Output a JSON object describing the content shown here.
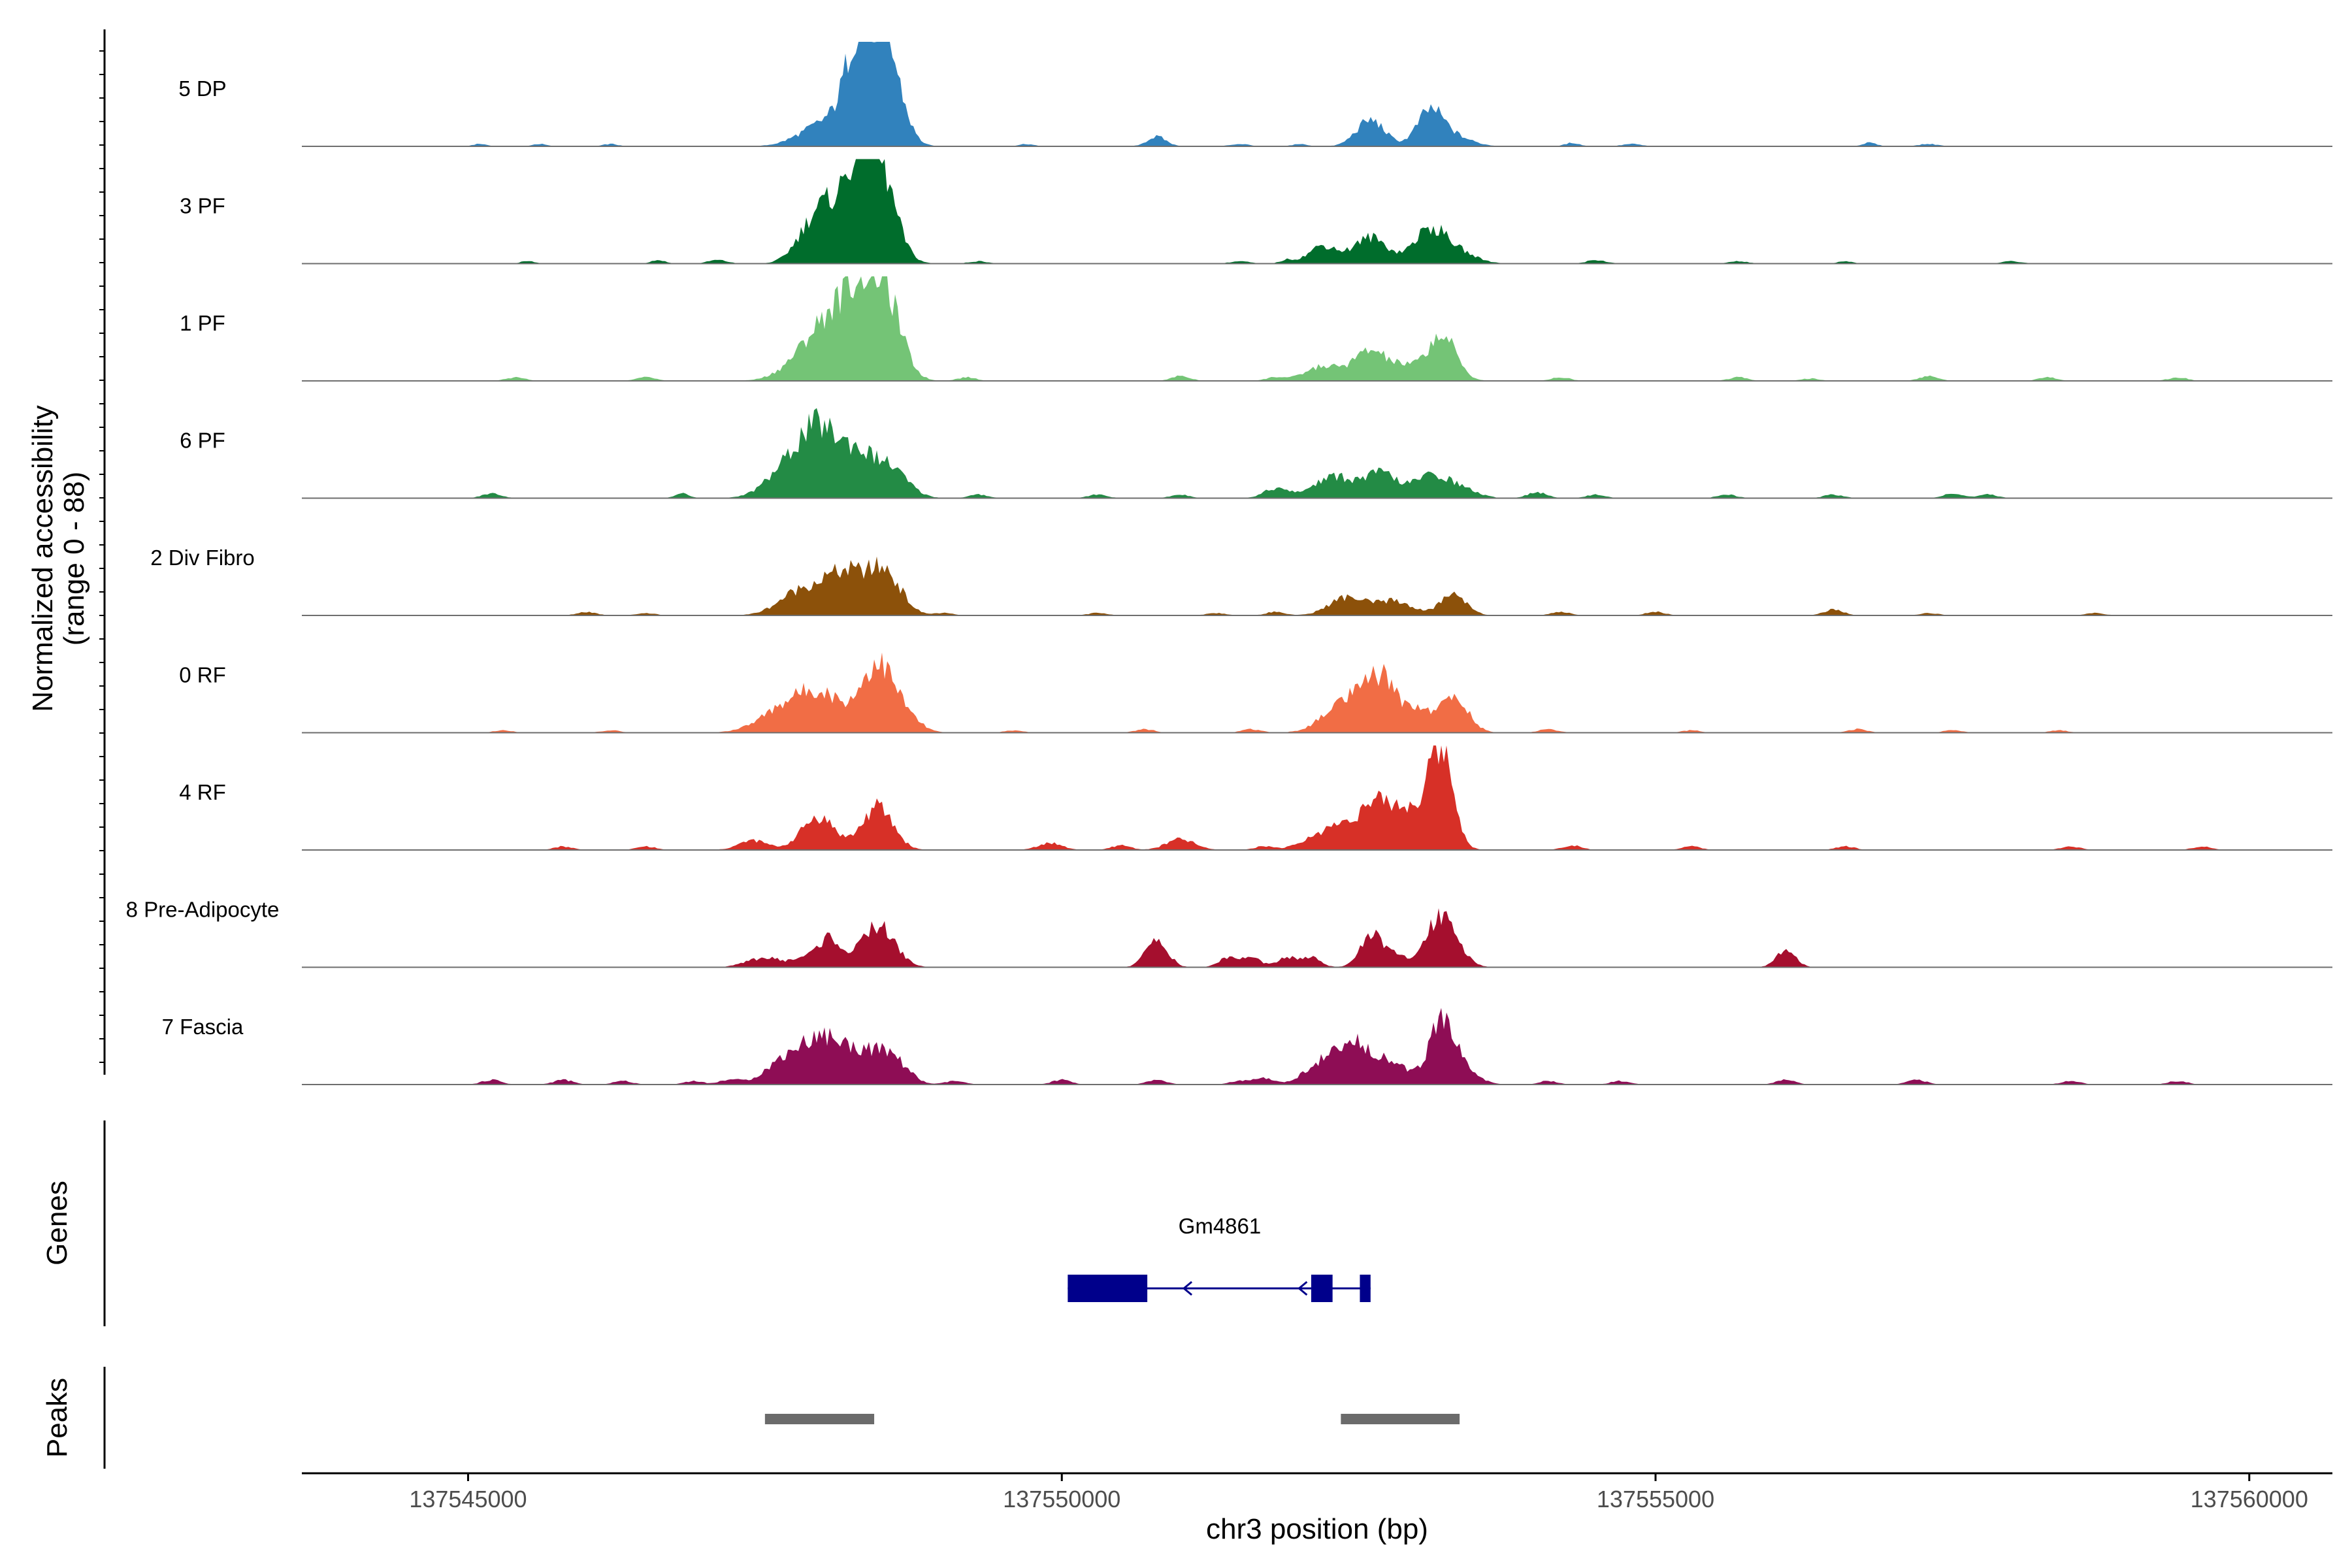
{
  "chart_data": {
    "type": "area",
    "title": "",
    "ylabel_line1": "Normalized accessibility",
    "ylabel_line2": "(range 0 - 88)",
    "xlabel": "chr3 position (bp)",
    "x_range": [
      137543600,
      137560700
    ],
    "y_range": [
      0,
      88
    ],
    "xticks": [
      {
        "value": 137545000,
        "label": "137545000"
      },
      {
        "value": 137550000,
        "label": "137550000"
      },
      {
        "value": 137555000,
        "label": "137555000"
      },
      {
        "value": 137560000,
        "label": "137560000"
      }
    ],
    "tracks": [
      {
        "name": "5 DP",
        "color": "#3182BD",
        "peaks": [
          [
            137547900,
            10,
            180
          ],
          [
            137548150,
            18,
            180
          ],
          [
            137548400,
            75,
            150
          ],
          [
            137548550,
            40,
            120
          ],
          [
            137548250,
            30,
            80
          ],
          [
            137550800,
            8,
            80
          ],
          [
            137552600,
            22,
            120
          ],
          [
            137553100,
            28,
            110
          ],
          [
            137553300,
            8,
            150
          ]
        ],
        "noise": [
          [
            137545100,
            2,
            60
          ],
          [
            137545600,
            2,
            60
          ],
          [
            137546200,
            2,
            60
          ],
          [
            137549700,
            2,
            60
          ],
          [
            137551500,
            2,
            80
          ],
          [
            137552000,
            2,
            60
          ],
          [
            137554300,
            3,
            60
          ],
          [
            137554800,
            2,
            80
          ],
          [
            137556800,
            3,
            60
          ],
          [
            137557300,
            2,
            80
          ]
        ]
      },
      {
        "name": "3 PF",
        "color": "#006D2C",
        "peaks": [
          [
            137547900,
            25,
            140
          ],
          [
            137548150,
            45,
            180
          ],
          [
            137548450,
            78,
            140
          ],
          [
            137548300,
            30,
            100
          ],
          [
            137552200,
            15,
            120
          ],
          [
            137552600,
            22,
            140
          ],
          [
            137553100,
            28,
            140
          ],
          [
            137553350,
            8,
            150
          ]
        ],
        "noise": [
          [
            137545500,
            2,
            60
          ],
          [
            137546600,
            3,
            60
          ],
          [
            137547100,
            3,
            80
          ],
          [
            137549300,
            2,
            80
          ],
          [
            137551500,
            2,
            80
          ],
          [
            137551900,
            3,
            60
          ],
          [
            137554500,
            3,
            80
          ],
          [
            137555700,
            2,
            80
          ],
          [
            137556600,
            2,
            60
          ],
          [
            137558000,
            2,
            80
          ]
        ]
      },
      {
        "name": "1 PF",
        "color": "#74C476",
        "peaks": [
          [
            137547900,
            25,
            200
          ],
          [
            137548150,
            45,
            180
          ],
          [
            137548500,
            72,
            140
          ],
          [
            137548300,
            30,
            120
          ],
          [
            137552200,
            12,
            150
          ],
          [
            137552600,
            25,
            140
          ],
          [
            137552900,
            10,
            120
          ],
          [
            137553200,
            38,
            120
          ]
        ],
        "noise": [
          [
            137545400,
            3,
            80
          ],
          [
            137546500,
            3,
            80
          ],
          [
            137549200,
            3,
            80
          ],
          [
            137551000,
            4,
            80
          ],
          [
            137551800,
            3,
            80
          ],
          [
            137554200,
            3,
            80
          ],
          [
            137555700,
            3,
            80
          ],
          [
            137556300,
            2,
            80
          ],
          [
            137557300,
            4,
            80
          ],
          [
            137558300,
            3,
            80
          ],
          [
            137559400,
            3,
            80
          ]
        ]
      },
      {
        "name": "6 PF",
        "color": "#238B45",
        "peaks": [
          [
            137547700,
            25,
            180
          ],
          [
            137547950,
            48,
            150
          ],
          [
            137548250,
            35,
            150
          ],
          [
            137548550,
            24,
            150
          ],
          [
            137552300,
            18,
            180
          ],
          [
            137552700,
            20,
            130
          ],
          [
            137553100,
            18,
            140
          ],
          [
            137553350,
            8,
            140
          ]
        ],
        "noise": [
          [
            137545200,
            4,
            80
          ],
          [
            137546800,
            4,
            60
          ],
          [
            137549300,
            3,
            80
          ],
          [
            137550300,
            3,
            80
          ],
          [
            137551000,
            3,
            80
          ],
          [
            137551800,
            8,
            100
          ],
          [
            137554000,
            5,
            80
          ],
          [
            137554500,
            3,
            80
          ],
          [
            137555600,
            3,
            80
          ],
          [
            137556500,
            3,
            80
          ],
          [
            137557500,
            4,
            80
          ],
          [
            137557800,
            3,
            80
          ]
        ]
      },
      {
        "name": "2 Div Fibro",
        "color": "#8C510A",
        "peaks": [
          [
            137547800,
            20,
            180
          ],
          [
            137548100,
            24,
            150
          ],
          [
            137548500,
            38,
            140
          ],
          [
            137548250,
            15,
            120
          ],
          [
            137552400,
            15,
            150
          ],
          [
            137552800,
            12,
            150
          ],
          [
            137553300,
            18,
            110
          ]
        ],
        "noise": [
          [
            137546000,
            3,
            80
          ],
          [
            137546500,
            2,
            80
          ],
          [
            137549000,
            2,
            80
          ],
          [
            137550300,
            2,
            80
          ],
          [
            137551300,
            2,
            80
          ],
          [
            137551800,
            3,
            80
          ],
          [
            137554200,
            3,
            80
          ],
          [
            137555000,
            3,
            80
          ],
          [
            137556500,
            5,
            80
          ],
          [
            137557300,
            2,
            80
          ],
          [
            137558700,
            2,
            80
          ]
        ]
      },
      {
        "name": "0 RF",
        "color": "#F16D45",
        "peaks": [
          [
            137547700,
            22,
            220
          ],
          [
            137548000,
            26,
            180
          ],
          [
            137548450,
            57,
            140
          ],
          [
            137548700,
            10,
            120
          ],
          [
            137552400,
            27,
            180
          ],
          [
            137552700,
            42,
            130
          ],
          [
            137553000,
            18,
            100
          ],
          [
            137553300,
            30,
            120
          ]
        ],
        "noise": [
          [
            137545300,
            2,
            80
          ],
          [
            137546200,
            2,
            80
          ],
          [
            137549600,
            2,
            80
          ],
          [
            137550700,
            3,
            80
          ],
          [
            137551600,
            3,
            80
          ],
          [
            137554100,
            3,
            80
          ],
          [
            137555300,
            2,
            80
          ],
          [
            137556700,
            3,
            80
          ],
          [
            137557500,
            2,
            80
          ],
          [
            137558400,
            2,
            80
          ]
        ]
      },
      {
        "name": "4 RF",
        "color": "#D73027",
        "peaks": [
          [
            137547400,
            8,
            120
          ],
          [
            137547950,
            28,
            140
          ],
          [
            137548450,
            36,
            130
          ],
          [
            137552300,
            18,
            200
          ],
          [
            137552700,
            38,
            180
          ],
          [
            137553000,
            22,
            120
          ],
          [
            137553200,
            82,
            100
          ]
        ],
        "noise": [
          [
            137545800,
            3,
            80
          ],
          [
            137546500,
            3,
            80
          ],
          [
            137549900,
            6,
            100
          ],
          [
            137550500,
            4,
            80
          ],
          [
            137551000,
            9,
            120
          ],
          [
            137551700,
            3,
            80
          ],
          [
            137554300,
            4,
            80
          ],
          [
            137555300,
            3,
            80
          ],
          [
            137556600,
            3,
            80
          ],
          [
            137558500,
            3,
            80
          ],
          [
            137559600,
            3,
            80
          ]
        ]
      },
      {
        "name": "8 Pre-Adipocyte",
        "color": "#A50F2E",
        "peaks": [
          [
            137547500,
            8,
            150
          ],
          [
            137547850,
            8,
            100
          ],
          [
            137548050,
            24,
            90
          ],
          [
            137548450,
            35,
            140
          ],
          [
            137550800,
            24,
            90
          ],
          [
            137551400,
            8,
            80
          ],
          [
            137551600,
            8,
            80
          ],
          [
            137551900,
            8,
            80
          ],
          [
            137552100,
            8,
            80
          ],
          [
            137552600,
            28,
            90
          ],
          [
            137552800,
            10,
            80
          ],
          [
            137553200,
            45,
            130
          ],
          [
            137556100,
            14,
            80
          ]
        ],
        "noise": []
      },
      {
        "name": "7 Fascia",
        "color": "#8E0D55",
        "peaks": [
          [
            137547700,
            22,
            180
          ],
          [
            137548000,
            32,
            160
          ],
          [
            137548350,
            26,
            180
          ],
          [
            137548600,
            14,
            120
          ],
          [
            137552200,
            18,
            150
          ],
          [
            137552500,
            32,
            150
          ],
          [
            137552800,
            15,
            120
          ],
          [
            137553200,
            52,
            110
          ],
          [
            137553400,
            10,
            120
          ]
        ],
        "noise": [
          [
            137545200,
            4,
            80
          ],
          [
            137545800,
            4,
            80
          ],
          [
            137546300,
            3,
            80
          ],
          [
            137546900,
            3,
            80
          ],
          [
            137547200,
            4,
            80
          ],
          [
            137549100,
            3,
            80
          ],
          [
            137550000,
            4,
            80
          ],
          [
            137550800,
            4,
            80
          ],
          [
            137551500,
            3,
            80
          ],
          [
            137551700,
            5,
            80
          ],
          [
            137554100,
            3,
            80
          ],
          [
            137554700,
            3,
            80
          ],
          [
            137556100,
            4,
            80
          ],
          [
            137557200,
            4,
            80
          ],
          [
            137558500,
            3,
            80
          ],
          [
            137559400,
            3,
            80
          ]
        ]
      }
    ],
    "genes_label": "Genes",
    "gene": {
      "name": "Gm4861",
      "strand": "-",
      "start": 137550050,
      "end": 137552600,
      "exons": [
        [
          137550050,
          137550720
        ],
        [
          137552100,
          137552280
        ],
        [
          137552510,
          137552600
        ]
      ]
    },
    "peaks_label": "Peaks",
    "peak_regions": [
      [
        137547500,
        137548420
      ],
      [
        137552350,
        137553350
      ]
    ]
  }
}
